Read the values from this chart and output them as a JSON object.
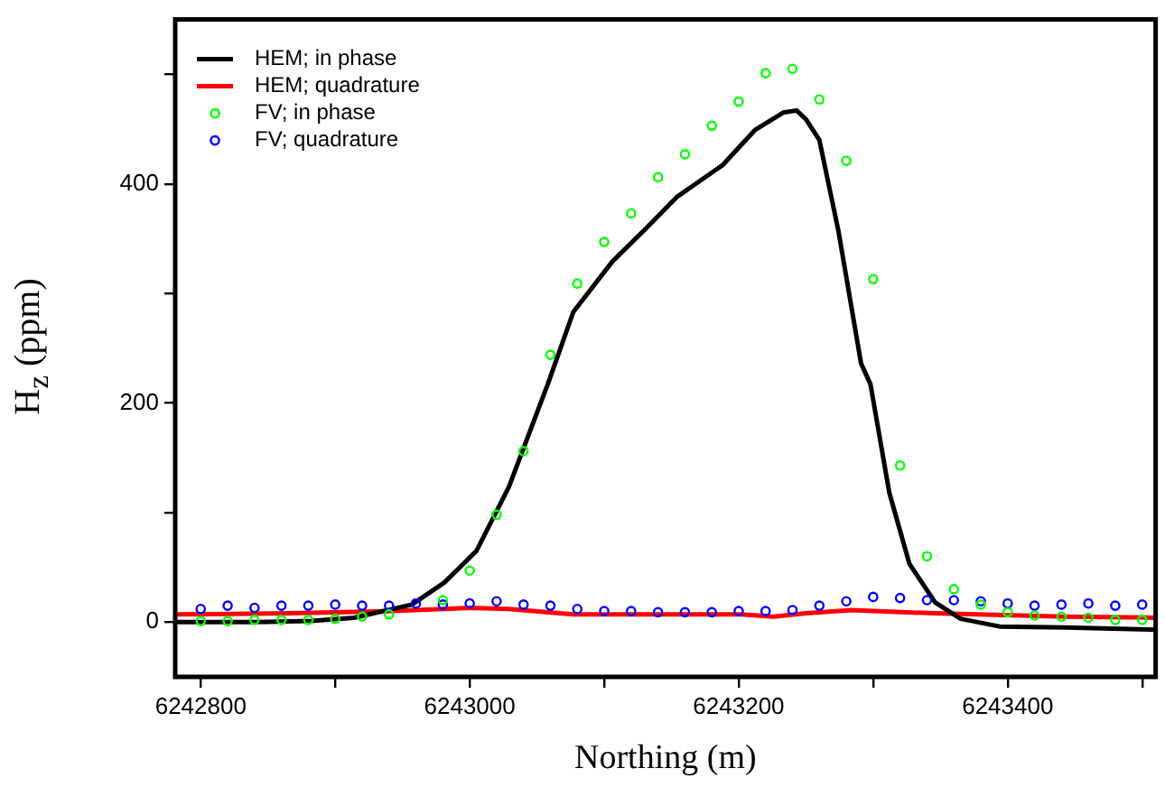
{
  "chart_data": {
    "type": "line",
    "xlabel": "Northing (m)",
    "ylabel": "H$_{z}$ (ppm)",
    "xlim": [
      6242781,
      6243510
    ],
    "ylim": [
      -50,
      550
    ],
    "xticks": [
      6242800,
      {
        "value": 6242900,
        "label": null
      },
      6243000,
      {
        "value": 6243100,
        "label": null
      },
      6243200,
      {
        "value": 6243300,
        "label": null
      },
      6243400,
      {
        "value": 6243500,
        "label": null
      }
    ],
    "yticks": [
      0,
      {
        "value": 100,
        "label": null
      },
      200,
      {
        "value": 300,
        "label": null
      },
      400,
      {
        "value": 500,
        "label": null
      }
    ],
    "grid": false,
    "legend": "top left",
    "series": [
      {
        "name": "HEM; in phase",
        "color": "#000000",
        "marker": "none",
        "x": [
          6242781,
          6242842,
          6242882,
          6242914,
          6242957,
          6242981,
          6243005,
          6243029,
          6243058,
          6243077,
          6243106,
          6243130,
          6243154,
          6243188,
          6243212,
          6243233,
          6243243,
          6243250,
          6243260,
          6243274,
          6243291,
          6243298,
          6243312,
          6243327,
          6243346,
          6243365,
          6243394,
          6243443,
          6243510
        ],
        "values": [
          0,
          0,
          1,
          4,
          16,
          36,
          65,
          123,
          217,
          283,
          329,
          358,
          388,
          417,
          449,
          465,
          467,
          459,
          440,
          358,
          236,
          217,
          118,
          53,
          18,
          3,
          -4,
          -5,
          -7
        ]
      },
      {
        "name": "HEM; quadrature",
        "color": "#ff0000",
        "marker": "none",
        "x": [
          6242781,
          6242866,
          6242938,
          6243000,
          6243029,
          6243077,
          6243202,
          6243226,
          6243250,
          6243284,
          6243346,
          6243442,
          6243510
        ],
        "values": [
          7,
          8,
          10,
          13,
          12,
          7,
          7,
          5,
          8,
          11,
          8,
          5,
          4
        ]
      },
      {
        "name": "FV; in phase",
        "type": "scatter",
        "color": "#00ff00",
        "marker": "circle",
        "x": [
          6242800,
          6242820,
          6242840,
          6242860,
          6242880,
          6242900,
          6242920,
          6242940,
          6242960,
          6242980,
          6243000,
          6243020,
          6243040,
          6243060,
          6243080,
          6243100,
          6243120,
          6243140,
          6243160,
          6243180,
          6243200,
          6243220,
          6243240,
          6243260,
          6243280,
          6243300,
          6243320,
          6243340,
          6243360,
          6243380,
          6243400,
          6243420,
          6243440,
          6243460,
          6243480,
          6243500
        ],
        "values": [
          1,
          1,
          2,
          2,
          2,
          3,
          5,
          7,
          null,
          20,
          47,
          98,
          156,
          244,
          309,
          347,
          373,
          406,
          427,
          453,
          475,
          501,
          505,
          477,
          421,
          313,
          143,
          60,
          30,
          16,
          9,
          6,
          5,
          4,
          2,
          2
        ]
      },
      {
        "name": "FV; quadrature",
        "type": "scatter",
        "color": "#0000ff",
        "marker": "circle",
        "x": [
          6242800,
          6242820,
          6242840,
          6242860,
          6242880,
          6242900,
          6242920,
          6242940,
          6242960,
          6242980,
          6243000,
          6243020,
          6243040,
          6243060,
          6243080,
          6243100,
          6243120,
          6243140,
          6243160,
          6243180,
          6243200,
          6243220,
          6243240,
          6243260,
          6243280,
          6243300,
          6243320,
          6243340,
          6243360,
          6243380,
          6243400,
          6243420,
          6243440,
          6243460,
          6243480,
          6243500
        ],
        "values": [
          12,
          15,
          13,
          15,
          15,
          16,
          15,
          15,
          17,
          16,
          17,
          19,
          16,
          15,
          12,
          10,
          10,
          9,
          9,
          9,
          10,
          10,
          11,
          15,
          19,
          23,
          22,
          20,
          20,
          19,
          17,
          15,
          16,
          17,
          15,
          16
        ]
      }
    ]
  }
}
